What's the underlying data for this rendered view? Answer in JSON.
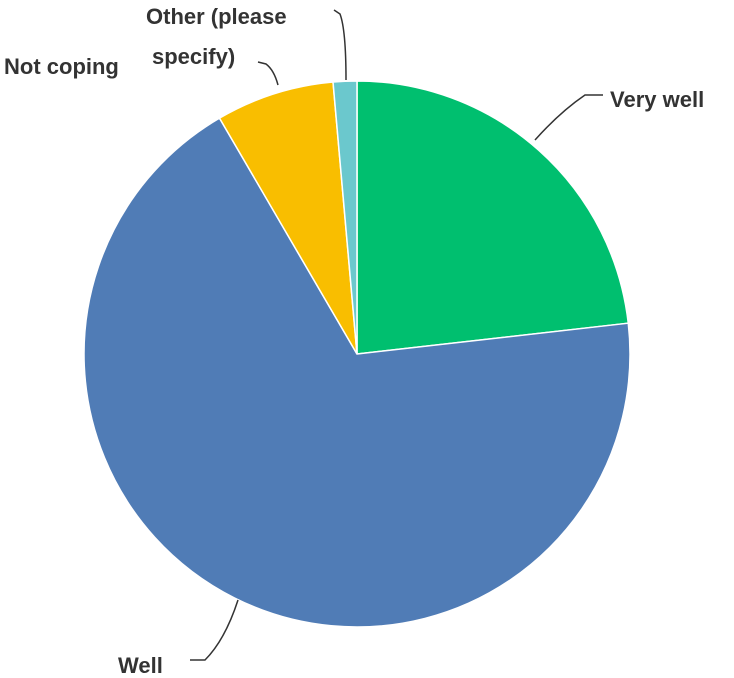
{
  "chart_data": {
    "type": "pie",
    "title": "",
    "start_angle_deg": 0,
    "direction": "clockwise",
    "slices": [
      {
        "label": "Very well",
        "value": 23.2,
        "color": "#00bf6f"
      },
      {
        "label": "Well",
        "value": 68.4,
        "color": "#507cb6"
      },
      {
        "label": "Not coping",
        "value": 7.0,
        "color": "#f9be00"
      },
      {
        "label": "Other (please specify)",
        "value": 1.4,
        "color": "#6bc8cd"
      }
    ]
  }
}
